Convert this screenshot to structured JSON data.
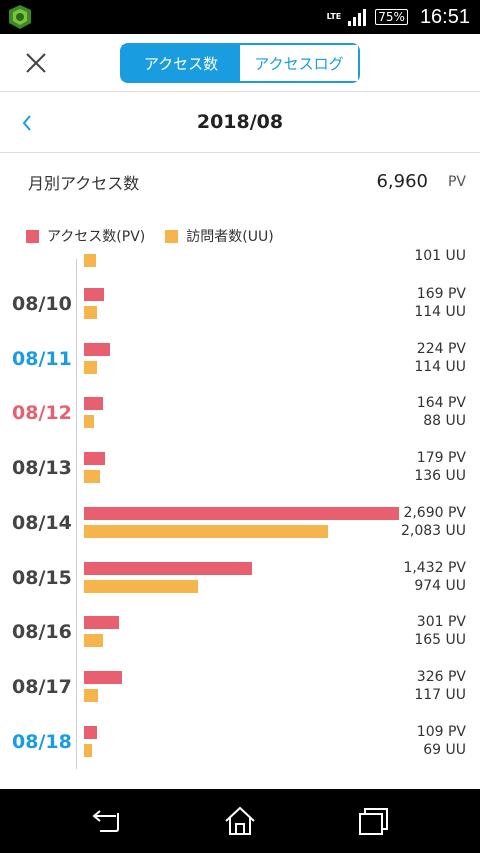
{
  "status_bar": {
    "network": "LTE",
    "battery": "75%",
    "time": "16:51",
    "app_icon": "app-icon"
  },
  "header": {
    "close_icon": "close-icon",
    "tabs": [
      {
        "label": "アクセス数",
        "active": true
      },
      {
        "label": "アクセスログ",
        "active": false
      }
    ]
  },
  "month_nav": {
    "back_icon": "chevron-left-icon",
    "title": "2018/08"
  },
  "summary": {
    "label": "月別アクセス数",
    "value": "6,960",
    "unit": "PV"
  },
  "legend": [
    {
      "label": "アクセス数(PV)",
      "color": "#e8606f"
    },
    {
      "label": "訪問者数(UU)",
      "color": "#f5b44c"
    }
  ],
  "colors": {
    "accent": "#1a9de0",
    "pv": "#e8606f",
    "uu": "#f5b44c",
    "weekend_sat": "#1a9de0",
    "weekend_sun": "#e8606f"
  },
  "chart_data": {
    "type": "bar",
    "orientation": "horizontal",
    "partial_top_row": {
      "uu_label": "101 UU",
      "uu": 101
    },
    "categories": [
      "08/10",
      "08/11",
      "08/12",
      "08/13",
      "08/14",
      "08/15",
      "08/16",
      "08/17",
      "08/18"
    ],
    "series": [
      {
        "name": "アクセス数(PV)",
        "unit": "PV",
        "values": [
          169,
          224,
          164,
          179,
          2690,
          1432,
          301,
          326,
          109
        ],
        "labels": [
          "169",
          "224",
          "164",
          "179",
          "2,690",
          "1,432",
          "301",
          "326",
          "109"
        ]
      },
      {
        "name": "訪問者数(UU)",
        "unit": "UU",
        "values": [
          114,
          114,
          88,
          136,
          2083,
          974,
          165,
          117,
          69
        ],
        "labels": [
          "114",
          "114",
          "88",
          "136",
          "2,083",
          "974",
          "165",
          "117",
          "69"
        ]
      }
    ],
    "day_colors": [
      "#444444",
      "#1a9de0",
      "#e8606f",
      "#444444",
      "#444444",
      "#444444",
      "#444444",
      "#444444",
      "#1a9de0"
    ],
    "xlim": [
      0,
      2690
    ]
  },
  "nav_bar": {
    "back": "back-icon",
    "home": "home-icon",
    "recents": "recents-icon"
  }
}
